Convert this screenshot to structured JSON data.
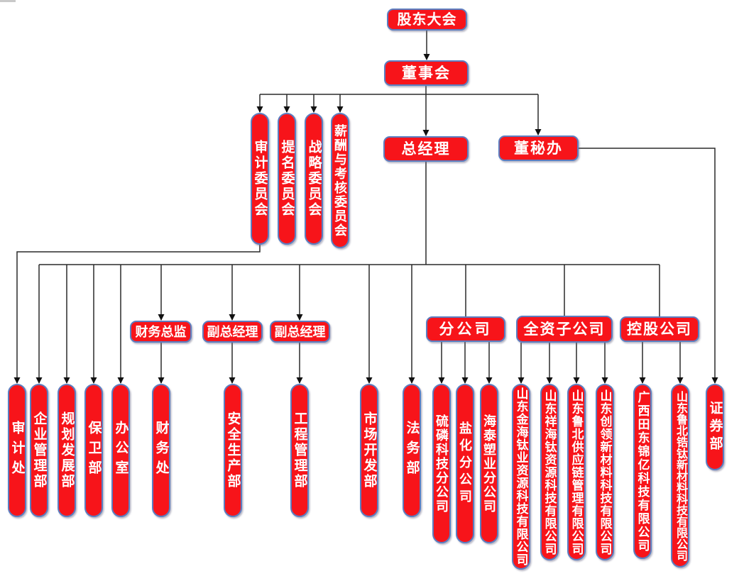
{
  "org_chart": {
    "type": "org-chart",
    "box_fill_color": "#f7141a",
    "box_border_color": "#5b7ec1",
    "text_color": "#ffffff",
    "line_color": "#2a2a2a",
    "nodes": [
      {
        "id": "shareholders-meeting",
        "label": "股东大会",
        "level": "top"
      },
      {
        "id": "board-of-directors",
        "label": "董事会",
        "level": "board",
        "parent": "shareholders-meeting"
      },
      {
        "id": "audit-committee",
        "label": "审计委员会",
        "level": "committee",
        "parent": "board-of-directors"
      },
      {
        "id": "nomination-committee",
        "label": "提名委员会",
        "level": "committee",
        "parent": "board-of-directors"
      },
      {
        "id": "strategy-committee",
        "label": "战略委员会",
        "level": "committee",
        "parent": "board-of-directors"
      },
      {
        "id": "remuneration-appraisal-committee",
        "label": "薪酬与考核委员会",
        "level": "committee",
        "parent": "board-of-directors"
      },
      {
        "id": "general-manager",
        "label": "总经理",
        "level": "executive",
        "parent": "board-of-directors"
      },
      {
        "id": "board-secretary-office",
        "label": "董秘办",
        "level": "executive",
        "parent": "board-of-directors"
      },
      {
        "id": "cfo",
        "label": "财务总监",
        "level": "senior-management",
        "parent": "general-manager"
      },
      {
        "id": "deputy-gm-1",
        "label": "副总经理",
        "level": "senior-management",
        "parent": "general-manager"
      },
      {
        "id": "deputy-gm-2",
        "label": "副总经理",
        "level": "senior-management",
        "parent": "general-manager"
      },
      {
        "id": "branch-companies-group",
        "label": "分公司",
        "level": "group-header",
        "parent": "general-manager"
      },
      {
        "id": "wholly-owned-subsidiaries-group",
        "label": "全资子公司",
        "level": "group-header",
        "parent": "general-manager"
      },
      {
        "id": "holding-companies-group",
        "label": "控股公司",
        "level": "group-header",
        "parent": "general-manager"
      },
      {
        "id": "audit-office",
        "label": "审计处",
        "level": "department",
        "parent": "audit-committee"
      },
      {
        "id": "enterprise-management-dept",
        "label": "企业管理部",
        "level": "department",
        "parent": "general-manager"
      },
      {
        "id": "planning-development-dept",
        "label": "规划发展部",
        "level": "department",
        "parent": "general-manager"
      },
      {
        "id": "security-dept",
        "label": "保卫部",
        "level": "department",
        "parent": "general-manager"
      },
      {
        "id": "general-office",
        "label": "办公室",
        "level": "department",
        "parent": "general-manager"
      },
      {
        "id": "finance-office",
        "label": "财务处",
        "level": "department",
        "parent": "cfo"
      },
      {
        "id": "safety-production-dept",
        "label": "安全生产部",
        "level": "department",
        "parent": "deputy-gm-1"
      },
      {
        "id": "engineering-management-dept",
        "label": "工程管理部",
        "level": "department",
        "parent": "deputy-gm-2"
      },
      {
        "id": "market-development-dept",
        "label": "市场开发部",
        "level": "department",
        "parent": "general-manager"
      },
      {
        "id": "legal-dept",
        "label": "法务部",
        "level": "department",
        "parent": "general-manager"
      },
      {
        "id": "sulfur-phosphorus-tech-branch",
        "label": "硫磷科技分公司",
        "level": "branch",
        "parent": "branch-companies-group"
      },
      {
        "id": "salt-chemical-branch",
        "label": "盐化分公司",
        "level": "branch",
        "parent": "branch-companies-group"
      },
      {
        "id": "haitai-plastics-branch",
        "label": "海泰塑业分公司",
        "level": "branch",
        "parent": "branch-companies-group"
      },
      {
        "id": "jinhai-titanium-resources",
        "label": "山东金海钛业资源科技有限公司",
        "level": "subsidiary",
        "parent": "wholly-owned-subsidiaries-group"
      },
      {
        "id": "xianghai-titanium-resources",
        "label": "山东祥海钛资源科技有限公司",
        "level": "subsidiary",
        "parent": "wholly-owned-subsidiaries-group"
      },
      {
        "id": "lubei-supply-chain",
        "label": "山东鲁北供应链管理有限公司",
        "level": "subsidiary",
        "parent": "wholly-owned-subsidiaries-group"
      },
      {
        "id": "chuangling-new-material",
        "label": "山东创领新材料科技有限公司",
        "level": "subsidiary",
        "parent": "wholly-owned-subsidiaries-group"
      },
      {
        "id": "tiandong-jinyi-technology",
        "label": "广西田东锦亿科技有限公司",
        "level": "holding",
        "parent": "holding-companies-group"
      },
      {
        "id": "lubei-zirconium-titanium",
        "label": "山东鲁北锆钛新材料科技有限公司",
        "level": "holding",
        "parent": "holding-companies-group"
      },
      {
        "id": "securities-dept",
        "label": "证券部",
        "level": "department",
        "parent": "board-secretary-office"
      }
    ]
  }
}
